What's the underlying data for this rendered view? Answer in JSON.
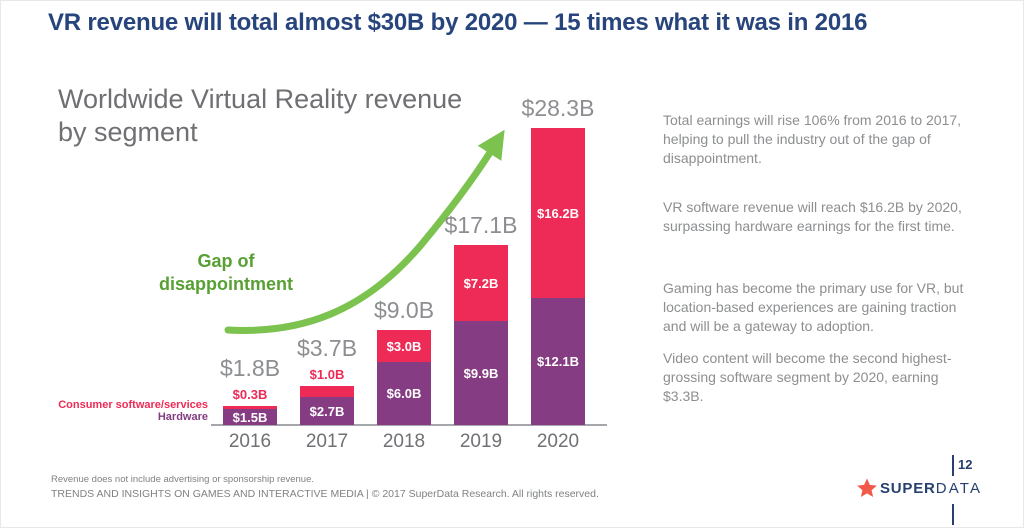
{
  "slide": {
    "title": "VR revenue will total almost $30B by 2020 — 15 times what it was in 2016",
    "page_number": "12"
  },
  "chart": {
    "title_line1": "Worldwide Virtual Reality revenue",
    "title_line2": "by segment",
    "annotation_line1": "Gap of",
    "annotation_line2": "disappointment",
    "legend_software": "Consumer software/services",
    "legend_hardware": "Hardware"
  },
  "chart_data": {
    "type": "bar",
    "stacked": true,
    "title": "Worldwide Virtual Reality revenue by segment",
    "unit": "USD billions",
    "categories": [
      "2016",
      "2017",
      "2018",
      "2019",
      "2020"
    ],
    "series": [
      {
        "name": "Hardware",
        "color": "#853c82",
        "values": [
          1.5,
          2.7,
          6.0,
          9.9,
          12.1
        ],
        "labels": [
          "$1.5B",
          "$2.7B",
          "$6.0B",
          "$9.9B",
          "$12.1B"
        ]
      },
      {
        "name": "Consumer software/services",
        "color": "#ed2b56",
        "values": [
          0.3,
          1.0,
          3.0,
          7.2,
          16.2
        ],
        "labels": [
          "$0.3B",
          "$1.0B",
          "$3.0B",
          "$7.2B",
          "$16.2B"
        ]
      }
    ],
    "totals": [
      1.8,
      3.7,
      9.0,
      17.1,
      28.3
    ],
    "total_labels": [
      "$1.8B",
      "$3.7B",
      "$9.0B",
      "$17.1B",
      "$28.3B"
    ],
    "annotation": "Gap of disappointment",
    "legend_position": "left of 2016 bar",
    "ylim": [
      0,
      30
    ],
    "grid": false
  },
  "insights": {
    "p1": "Total earnings will rise 106% from 2016 to 2017, helping to pull the industry out of the gap of disappointment.",
    "p2": "VR software revenue will reach $16.2B by 2020, surpassing hardware earnings for the first time.",
    "p3": "Gaming has become the primary use for VR, but location-based experiences are gaining traction and will be a gateway to adoption.",
    "p4": "Video content will become the second highest-grossing software segment by 2020, earning $3.3B."
  },
  "footer": {
    "note": "Revenue does not include advertising or sponsorship revenue.",
    "copyright": "TRENDS AND INSIGHTS ON GAMES AND INTERACTIVE MEDIA  |  © 2017 SuperData Research. All rights reserved."
  },
  "logo": {
    "super": "SUPER",
    "data": "DATA"
  },
  "colors": {
    "title_navy": "#27457c",
    "bar_red": "#ed2b56",
    "bar_purple": "#853c82",
    "arrow_green": "#7cc24e",
    "gap_text_green": "#58a033",
    "logo_star_red": "#f2594b",
    "logo_navy": "#27406f",
    "gray_text": "#8c8e90"
  }
}
